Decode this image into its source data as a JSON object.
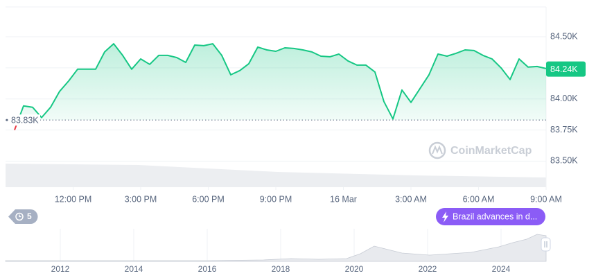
{
  "chart_data": {
    "type": "line",
    "xlim": [
      9,
      33
    ],
    "xticks": [
      {
        "value": 12,
        "label": "12:00 PM"
      },
      {
        "value": 15,
        "label": "3:00 PM"
      },
      {
        "value": 18,
        "label": "6:00 PM"
      },
      {
        "value": 21,
        "label": "9:00 PM"
      },
      {
        "value": 24,
        "label": "16 Mar"
      },
      {
        "value": 27,
        "label": "3:00 AM"
      },
      {
        "value": 30,
        "label": "6:00 AM"
      },
      {
        "value": 33,
        "label": "9:00 AM"
      }
    ],
    "ylim": [
      83290,
      84740
    ],
    "yticks": [
      {
        "value": 84500,
        "label": "84.50K"
      },
      {
        "value": 84250,
        "label": "84.25K"
      },
      {
        "value": 84000,
        "label": "84.00K"
      },
      {
        "value": 83750,
        "label": "83.75K"
      },
      {
        "value": 83500,
        "label": "83.50K"
      }
    ],
    "grid": true,
    "color": "#16c784",
    "below_color": "#ea3943",
    "baseline": {
      "value": 83830,
      "label": "83.83K"
    },
    "price_label": {
      "value": 84240,
      "label": "84.24K"
    },
    "x": [
      9.4,
      9.8,
      10.2,
      10.6,
      11.0,
      11.4,
      11.8,
      12.2,
      12.6,
      13.0,
      13.4,
      13.8,
      14.2,
      14.6,
      15.0,
      15.4,
      15.8,
      16.2,
      16.6,
      17.0,
      17.4,
      17.8,
      18.2,
      18.6,
      19.0,
      19.4,
      19.8,
      20.2,
      20.6,
      21.0,
      21.4,
      21.8,
      22.2,
      22.6,
      23.0,
      23.4,
      23.8,
      24.2,
      24.6,
      25.0,
      25.4,
      25.8,
      26.2,
      26.6,
      27.0,
      27.4,
      27.8,
      28.2,
      28.6,
      29.0,
      29.4,
      29.8,
      30.2,
      30.6,
      31.0,
      31.4,
      31.8,
      32.2,
      32.6,
      33.0
    ],
    "values": [
      83750,
      83944,
      83933,
      83850,
      83933,
      84061,
      84144,
      84239,
      84239,
      84239,
      84378,
      84444,
      84350,
      84239,
      84322,
      84278,
      84350,
      84350,
      84333,
      84294,
      84433,
      84428,
      84444,
      84350,
      84194,
      84228,
      84283,
      84417,
      84394,
      84383,
      84411,
      84406,
      84394,
      84378,
      84344,
      84339,
      84361,
      84306,
      84272,
      84272,
      84217,
      83978,
      83839,
      84072,
      83972,
      84083,
      84194,
      84361,
      84344,
      84367,
      84394,
      84389,
      84350,
      84322,
      84250,
      84156,
      84322,
      84256,
      84261,
      84244
    ],
    "watermark": "CoinMarketCap",
    "events_count": 5,
    "news_annotation": "Brazil advances in d...",
    "overview_xticks": [
      2012,
      2014,
      2016,
      2018,
      2020,
      2022,
      2024
    ]
  }
}
